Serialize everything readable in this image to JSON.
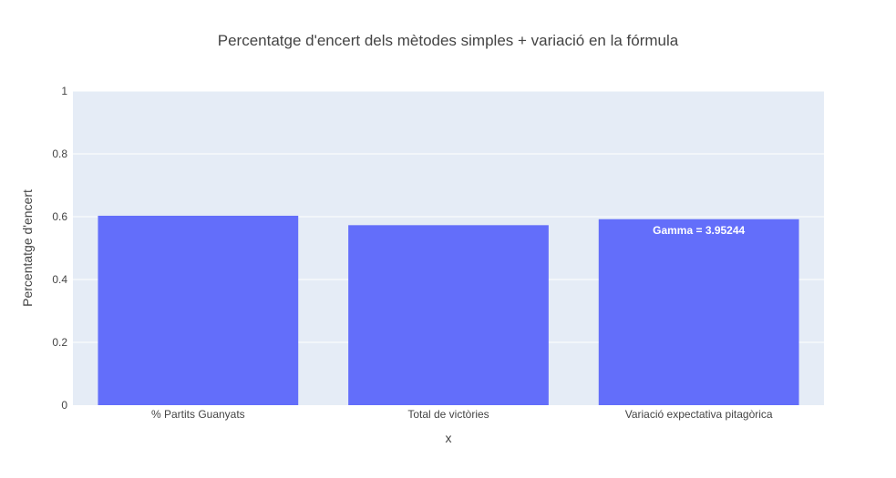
{
  "chart_data": {
    "type": "bar",
    "title": "Percentatge d'encert dels mètodes simples + variació en la fórmula",
    "xlabel": "x",
    "ylabel": "Percentatge d'encert",
    "categories": [
      "% Partits Guanyats",
      "Total de victòries",
      "Variació expectativa pitagòrica"
    ],
    "values": [
      0.603,
      0.573,
      0.592
    ],
    "data_labels": [
      "",
      "",
      "Gamma = 3.95244"
    ],
    "ylim": [
      0,
      1
    ],
    "yticks": [
      {
        "value": 0,
        "label": "0"
      },
      {
        "value": 0.2,
        "label": "0.2"
      },
      {
        "value": 0.4,
        "label": "0.4"
      },
      {
        "value": 0.6,
        "label": "0.6"
      },
      {
        "value": 0.8,
        "label": "0.8"
      },
      {
        "value": 1,
        "label": "1"
      }
    ],
    "grid": true,
    "colors": {
      "bar": "#636efa",
      "plot_background": "#e5ecf6",
      "gridline": "#ffffff"
    }
  }
}
